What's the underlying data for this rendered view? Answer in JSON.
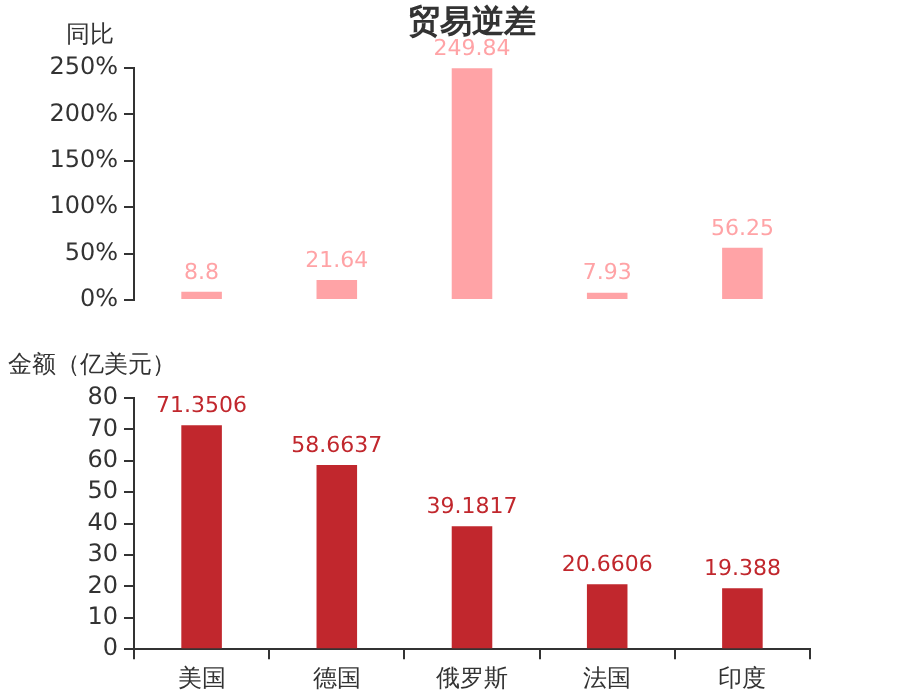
{
  "chart_data": [
    {
      "type": "bar",
      "title": "贸易逆差",
      "ylabel": "同比",
      "categories": [
        null,
        null,
        null,
        null,
        null
      ],
      "values": [
        8.8,
        21.64,
        249.84,
        7.93,
        56.25
      ],
      "color": "#ffa3a6",
      "ylim": [
        0,
        250
      ],
      "yticks": [
        {
          "value": 0,
          "label": "0%"
        },
        {
          "value": 50,
          "label": "50%"
        },
        {
          "value": 100,
          "label": "100%"
        },
        {
          "value": 150,
          "label": "150%"
        },
        {
          "value": 200,
          "label": "200%"
        },
        {
          "value": 250,
          "label": "250%"
        }
      ],
      "data_labels": true,
      "tick_labels": "y"
    },
    {
      "type": "bar",
      "ylabel": "金额（亿美元）",
      "categories": [
        "美国",
        "德国",
        "俄罗斯",
        "法国",
        "印度"
      ],
      "values": [
        71.3506,
        58.6637,
        39.1817,
        20.6606,
        19.388
      ],
      "color": "#c1272d",
      "ylim": [
        0,
        80
      ],
      "yticks": [
        0,
        10,
        20,
        30,
        40,
        50,
        60,
        70,
        80
      ],
      "data_labels": true
    }
  ]
}
